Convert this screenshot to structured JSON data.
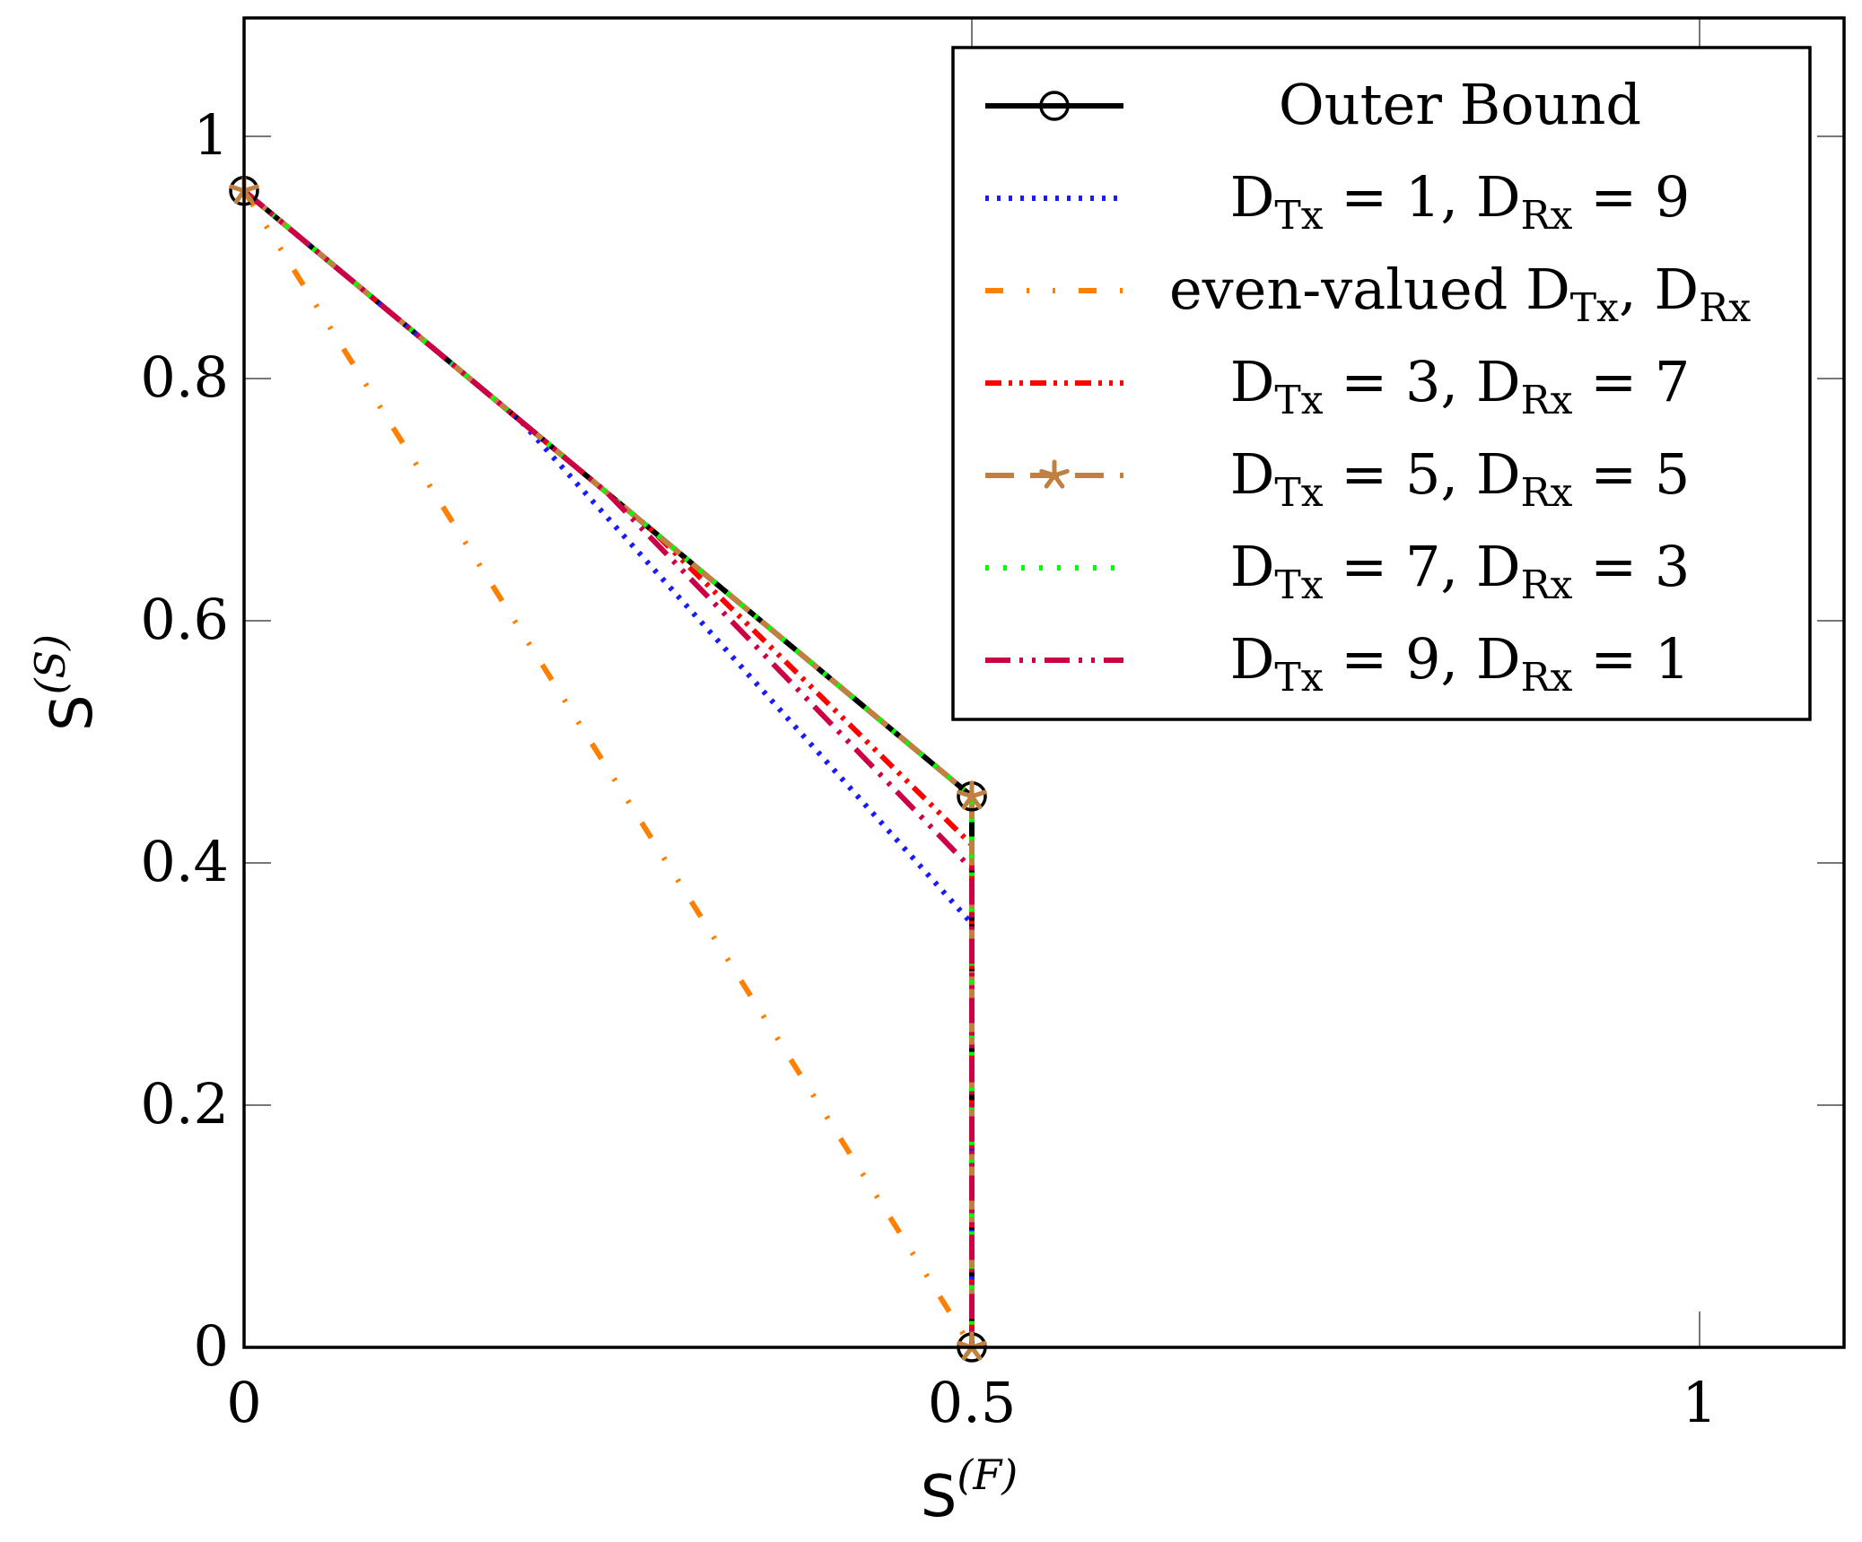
{
  "chart_data": {
    "type": "line",
    "xlabel": "S",
    "xlabel_sup": "(F)",
    "ylabel": "S",
    "ylabel_sup": "(S)",
    "xlim": [
      0,
      1.1
    ],
    "ylim": [
      0,
      1.1
    ],
    "xticks": [
      0,
      0.5,
      1
    ],
    "xtick_labels": [
      "0",
      "0.5",
      "1"
    ],
    "yticks": [
      0,
      0.2,
      0.4,
      0.6,
      0.8,
      1
    ],
    "ytick_labels": [
      "0",
      "0.2",
      "0.4",
      "0.6",
      "0.8",
      "1"
    ],
    "legend_position": "top-right",
    "series": [
      {
        "name": "Outer Bound",
        "legend": [
          {
            "t": "Outer Bound"
          }
        ],
        "color": "#000000",
        "dash": "",
        "marker": "circle",
        "points": [
          [
            0,
            0.955
          ],
          [
            0.5,
            0.455
          ],
          [
            0.5,
            0
          ]
        ]
      },
      {
        "name": "D_Tx = 1, D_Rx = 9",
        "legend": [
          {
            "t": "D"
          },
          {
            "t": "Tx",
            "sub": true
          },
          {
            "t": " = 1, D"
          },
          {
            "t": "Rx",
            "sub": true
          },
          {
            "t": " = 9"
          }
        ],
        "color": "#1a1aff",
        "dash": "4 9",
        "marker": "",
        "points": [
          [
            0,
            0.955
          ],
          [
            0.19,
            0.765
          ],
          [
            0.5,
            0.35
          ],
          [
            0.5,
            0
          ]
        ]
      },
      {
        "name": "even-valued D_Tx, D_Rx",
        "legend": [
          {
            "t": "even-valued D"
          },
          {
            "t": "Tx",
            "sub": true
          },
          {
            "t": ", D"
          },
          {
            "t": "Rx",
            "sub": true
          }
        ],
        "color": "#ff8000",
        "dash": "20 26 3 26 3 26",
        "marker": "",
        "points": [
          [
            0,
            0.955
          ],
          [
            0.5,
            0
          ]
        ]
      },
      {
        "name": "D_Tx = 3, D_Rx = 7",
        "legend": [
          {
            "t": "D"
          },
          {
            "t": "Tx",
            "sub": true
          },
          {
            "t": " = 3, D"
          },
          {
            "t": "Rx",
            "sub": true
          },
          {
            "t": " = 7"
          }
        ],
        "color": "#ff0000",
        "dash": "18 8 4 8 4 8",
        "marker": "",
        "points": [
          [
            0,
            0.955
          ],
          [
            0.28,
            0.675
          ],
          [
            0.5,
            0.415
          ],
          [
            0.5,
            0
          ]
        ]
      },
      {
        "name": "D_Tx = 5, D_Rx = 5",
        "legend": [
          {
            "t": "D"
          },
          {
            "t": "Tx",
            "sub": true
          },
          {
            "t": " = 5, D"
          },
          {
            "t": "Rx",
            "sub": true
          },
          {
            "t": " = 5"
          }
        ],
        "color": "#bf8040",
        "dash": "32 18",
        "marker": "star",
        "points": [
          [
            0,
            0.955
          ],
          [
            0.5,
            0.455
          ],
          [
            0.5,
            0
          ]
        ]
      },
      {
        "name": "D_Tx = 7, D_Rx = 3",
        "legend": [
          {
            "t": "D"
          },
          {
            "t": "Tx",
            "sub": true
          },
          {
            "t": " = 7, D"
          },
          {
            "t": "Rx",
            "sub": true
          },
          {
            "t": " = 3"
          }
        ],
        "color": "#00ff00",
        "dash": "4 16",
        "marker": "",
        "points": [
          [
            0,
            0.955
          ],
          [
            0.5,
            0.455
          ],
          [
            0.5,
            0
          ]
        ]
      },
      {
        "name": "D_Tx = 9, D_Rx = 1",
        "legend": [
          {
            "t": "D"
          },
          {
            "t": "Tx",
            "sub": true
          },
          {
            "t": " = 9, D"
          },
          {
            "t": "Rx",
            "sub": true
          },
          {
            "t": " = 1"
          }
        ],
        "color": "#cc0044",
        "dash": "28 10 4 10 4 10",
        "marker": "",
        "points": [
          [
            0,
            0.955
          ],
          [
            0.25,
            0.705
          ],
          [
            0.5,
            0.395
          ],
          [
            0.5,
            0
          ]
        ]
      }
    ]
  }
}
